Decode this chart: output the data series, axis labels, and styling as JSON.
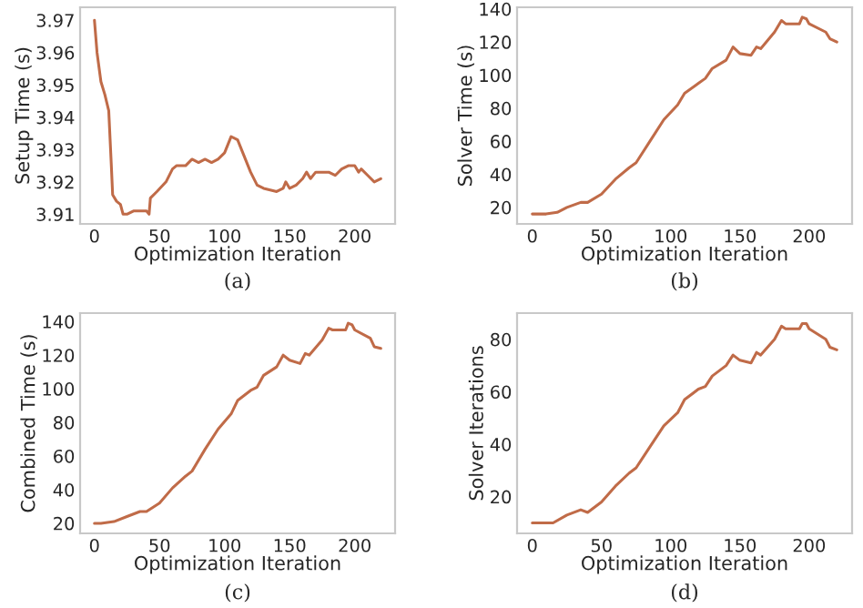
{
  "chart_data": [
    {
      "type": "line",
      "xlabel": "Optimization Iteration",
      "ylabel": "Setup Time (s)",
      "annotations": [
        "(a)"
      ],
      "color": "#c06b48",
      "grid": false,
      "marker": "none",
      "line_style": "solid",
      "x": [
        0,
        2,
        5,
        8,
        11,
        13,
        14,
        17,
        20,
        22,
        25,
        30,
        35,
        40,
        42,
        43,
        48,
        55,
        60,
        63,
        70,
        75,
        80,
        85,
        90,
        95,
        100,
        105,
        110,
        115,
        120,
        125,
        130,
        140,
        145,
        147,
        150,
        155,
        160,
        163,
        166,
        170,
        180,
        185,
        190,
        195,
        200,
        203,
        205,
        210,
        215,
        220
      ],
      "values": [
        3.97,
        3.96,
        3.951,
        3.947,
        3.942,
        3.925,
        3.916,
        3.914,
        3.913,
        3.91,
        3.91,
        3.911,
        3.911,
        3.911,
        3.91,
        3.915,
        3.917,
        3.92,
        3.924,
        3.925,
        3.925,
        3.927,
        3.926,
        3.927,
        3.926,
        3.927,
        3.929,
        3.934,
        3.933,
        3.928,
        3.923,
        3.919,
        3.918,
        3.917,
        3.918,
        3.92,
        3.918,
        3.919,
        3.921,
        3.923,
        3.921,
        3.923,
        3.923,
        3.922,
        3.924,
        3.925,
        3.925,
        3.923,
        3.924,
        3.922,
        3.92,
        3.921
      ],
      "xlim": [
        -11,
        231
      ],
      "ylim": [
        3.907,
        3.974
      ],
      "xticks": [
        0,
        50,
        100,
        150,
        200
      ],
      "yticks": [
        3.91,
        3.92,
        3.93,
        3.94,
        3.95,
        3.96,
        3.97
      ]
    },
    {
      "type": "line",
      "xlabel": "Optimization Iteration",
      "ylabel": "Solver Time (s)",
      "annotations": [
        "(b)"
      ],
      "color": "#c06b48",
      "grid": false,
      "marker": "none",
      "line_style": "solid",
      "x": [
        0,
        10,
        18,
        25,
        35,
        40,
        50,
        60,
        70,
        75,
        85,
        95,
        105,
        110,
        120,
        125,
        130,
        140,
        145,
        150,
        158,
        162,
        165,
        175,
        180,
        183,
        193,
        195,
        198,
        200,
        212,
        215,
        220
      ],
      "values": [
        16,
        16,
        17,
        20,
        23,
        23,
        28,
        37,
        44,
        47,
        60,
        73,
        82,
        89,
        95,
        98,
        104,
        109,
        117,
        113,
        112,
        117,
        116,
        126,
        133,
        131,
        131,
        135,
        134,
        131,
        126,
        122,
        120
      ],
      "xlim": [
        -11,
        231
      ],
      "ylim": [
        10,
        141
      ],
      "xticks": [
        0,
        50,
        100,
        150,
        200
      ],
      "yticks": [
        20,
        40,
        60,
        80,
        100,
        120,
        140
      ]
    },
    {
      "type": "line",
      "xlabel": "Optimization Iteration",
      "ylabel": "Combined Time (s)",
      "annotations": [
        "(c)"
      ],
      "color": "#c06b48",
      "grid": false,
      "marker": "none",
      "line_style": "solid",
      "x": [
        0,
        5,
        15,
        25,
        35,
        40,
        50,
        60,
        70,
        75,
        85,
        95,
        105,
        110,
        120,
        125,
        130,
        140,
        145,
        150,
        158,
        162,
        165,
        175,
        180,
        183,
        193,
        195,
        198,
        200,
        212,
        215,
        220
      ],
      "values": [
        20,
        20,
        21,
        24,
        27,
        27,
        32,
        41,
        48,
        51,
        64,
        76,
        85,
        93,
        99,
        101,
        108,
        113,
        120,
        117,
        115,
        121,
        120,
        129,
        136,
        135,
        135,
        139,
        138,
        135,
        130,
        125,
        124
      ],
      "xlim": [
        -11,
        231
      ],
      "ylim": [
        14,
        145
      ],
      "xticks": [
        0,
        50,
        100,
        150,
        200
      ],
      "yticks": [
        20,
        40,
        60,
        80,
        100,
        120,
        140
      ]
    },
    {
      "type": "line",
      "xlabel": "Optimization Iteration",
      "ylabel": "Solver Iterations",
      "annotations": [
        "(d)"
      ],
      "color": "#c06b48",
      "grid": false,
      "marker": "none",
      "line_style": "solid",
      "x": [
        0,
        5,
        15,
        25,
        35,
        40,
        50,
        60,
        70,
        75,
        85,
        95,
        105,
        110,
        120,
        125,
        130,
        140,
        145,
        150,
        158,
        162,
        165,
        175,
        180,
        183,
        193,
        195,
        198,
        200,
        212,
        215,
        220
      ],
      "values": [
        10,
        10,
        10,
        13,
        15,
        14,
        18,
        24,
        29,
        31,
        39,
        47,
        52,
        57,
        61,
        62,
        66,
        70,
        74,
        72,
        71,
        75,
        74,
        80,
        85,
        84,
        84,
        86,
        86,
        84,
        80,
        77,
        76
      ],
      "xlim": [
        -11,
        231
      ],
      "ylim": [
        6,
        90
      ],
      "xticks": [
        0,
        50,
        100,
        150,
        200
      ],
      "yticks": [
        20,
        40,
        60,
        80
      ]
    }
  ]
}
